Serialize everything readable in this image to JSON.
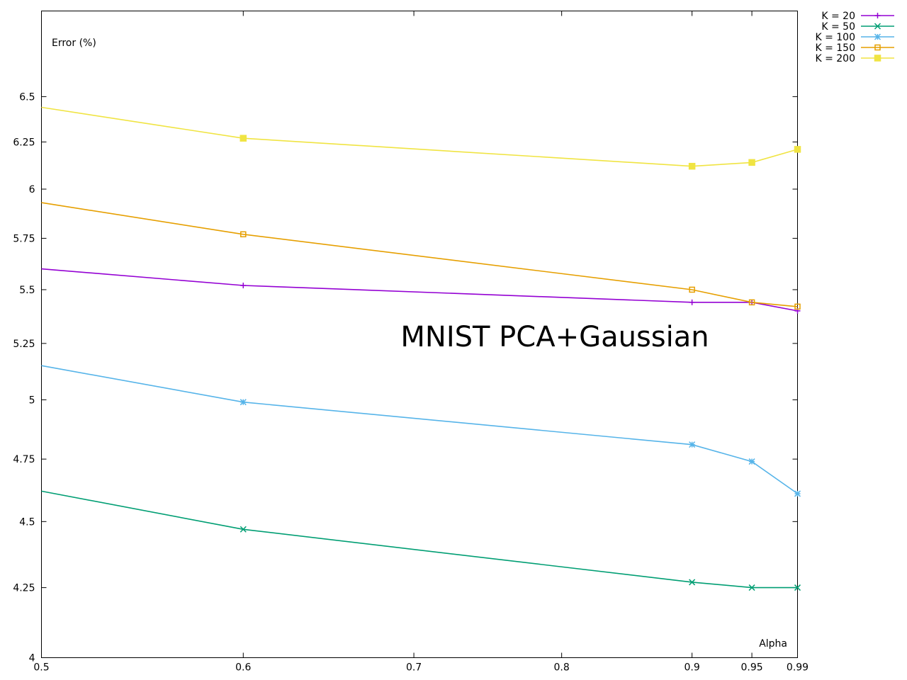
{
  "chart_data": {
    "type": "line",
    "title": "MNIST PCA+Gaussian",
    "xlabel": "Alpha",
    "ylabel": "Error (%)",
    "x_scale": "log",
    "y_scale": "log",
    "xlim": [
      0.5,
      0.99
    ],
    "ylim": [
      4,
      7
    ],
    "x_ticks": [
      0.5,
      0.6,
      0.7,
      0.8,
      0.9,
      0.95,
      0.99
    ],
    "x_tick_labels": [
      "0.5",
      "0.6",
      "0.7",
      "0.8",
      "0.9",
      "0.95",
      "0.99"
    ],
    "y_ticks": [
      4,
      4.25,
      4.5,
      4.75,
      5,
      5.25,
      5.5,
      5.75,
      6,
      6.25,
      6.5
    ],
    "y_tick_labels": [
      "4",
      "4.25",
      "4.5",
      "4.75",
      "5",
      "5.25",
      "5.5",
      "5.75",
      "6",
      "6.25",
      "6.5"
    ],
    "grid": false,
    "legend_position": "outside-top-right",
    "x": [
      0.5,
      0.6,
      0.9,
      0.95,
      0.99
    ],
    "series": [
      {
        "name": "K = 20",
        "color": "#9400d3",
        "marker": "plus",
        "values": [
          5.6,
          5.52,
          5.44,
          5.44,
          5.4
        ]
      },
      {
        "name": "K = 50",
        "color": "#009e73",
        "marker": "cross",
        "values": [
          4.62,
          4.47,
          4.27,
          4.25,
          4.25
        ]
      },
      {
        "name": "K = 100",
        "color": "#56b4e9",
        "marker": "star",
        "values": [
          5.15,
          4.99,
          4.81,
          4.74,
          4.61
        ]
      },
      {
        "name": "K = 150",
        "color": "#e69f00",
        "marker": "open-square",
        "values": [
          5.93,
          5.77,
          5.5,
          5.44,
          5.42
        ]
      },
      {
        "name": "K = 200",
        "color": "#f0e442",
        "marker": "filled-square",
        "values": [
          6.44,
          6.27,
          6.12,
          6.14,
          6.21
        ]
      }
    ]
  }
}
